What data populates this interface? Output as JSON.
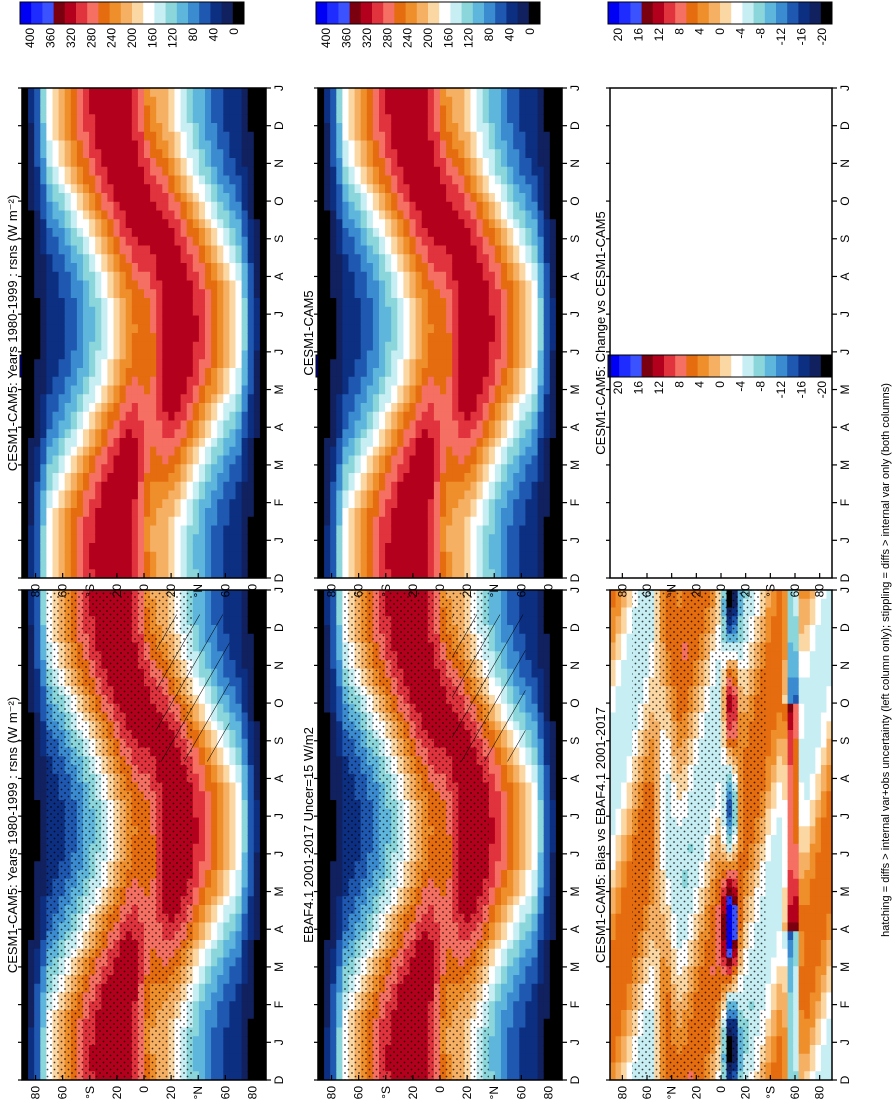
{
  "figure": {
    "orientation": "rotated-90-counterclockwise",
    "footnote": "hatching = diffs > internal var+obs uncertainty (left column only); stippling = diffs > internal var only (both columns)"
  },
  "chart_data": [
    {
      "id": "panel-model-left",
      "type": "heatmap",
      "title": "CESM1-CAM5: Years 1980-1999 : rsns (W m⁻²)",
      "xlabel": "",
      "ylabel": "",
      "x_ticks": [
        "D",
        "J",
        "F",
        "M",
        "A",
        "M",
        "J",
        "J",
        "A",
        "S",
        "O",
        "N",
        "D",
        "J"
      ],
      "y_ticks": [
        "80",
        "60",
        "°S",
        "20",
        "0",
        "20",
        "°N",
        "60",
        "80"
      ],
      "ylim": [
        -90,
        90
      ],
      "colorbar_labels": [
        "400",
        "360",
        "320",
        "280",
        "240",
        "200",
        "160",
        "120",
        "80",
        "40",
        "0"
      ],
      "field": "mean",
      "overlays": [
        "stippling",
        "hatching"
      ]
    },
    {
      "id": "panel-model-right",
      "type": "heatmap",
      "title": "CESM1-CAM5: Years 1980-1999 : rsns (W m⁻²)",
      "x_ticks": [
        "D",
        "J",
        "F",
        "M",
        "A",
        "M",
        "J",
        "J",
        "A",
        "S",
        "O",
        "N",
        "D",
        "J"
      ],
      "y_ticks": [
        "80",
        "60",
        "°S",
        "20",
        "0",
        "20",
        "°N",
        "60",
        "80"
      ],
      "ylim": [
        -90,
        90
      ],
      "colorbar_labels": [
        "400",
        "360",
        "320",
        "280",
        "240",
        "200",
        "160",
        "120",
        "80",
        "40",
        "0"
      ],
      "field": "mean",
      "overlays": []
    },
    {
      "id": "panel-obs-left",
      "type": "heatmap",
      "title": "EBAF4.1 2001-2017 Uncer=15 W/m2",
      "x_ticks": [
        "D",
        "J",
        "F",
        "M",
        "A",
        "M",
        "J",
        "J",
        "A",
        "S",
        "O",
        "N",
        "D",
        "J"
      ],
      "y_ticks": [
        "80",
        "60",
        "°S",
        "20",
        "0",
        "20",
        "°N",
        "60",
        "80"
      ],
      "ylim": [
        -90,
        90
      ],
      "colorbar_labels": [
        "400",
        "360",
        "320",
        "280",
        "240",
        "200",
        "160",
        "120",
        "80",
        "40",
        "0"
      ],
      "field": "mean",
      "overlays": [
        "stippling",
        "hatching"
      ]
    },
    {
      "id": "panel-model-right-2",
      "type": "heatmap",
      "title": "CESM1-CAM5",
      "x_ticks": [
        "D",
        "J",
        "F",
        "M",
        "A",
        "M",
        "J",
        "J",
        "A",
        "S",
        "O",
        "N",
        "D",
        "J"
      ],
      "y_ticks": [
        "80",
        "60",
        "°S",
        "20",
        "0",
        "20",
        "°N",
        "60",
        "80"
      ],
      "ylim": [
        -90,
        90
      ],
      "colorbar_labels": [
        "400",
        "360",
        "320",
        "280",
        "240",
        "200",
        "160",
        "120",
        "80",
        "40",
        "0"
      ],
      "field": "mean",
      "overlays": []
    },
    {
      "id": "panel-bias-left",
      "type": "heatmap",
      "title": "CESM1-CAM5: Bias vs EBAF4.1 2001-2017",
      "x_ticks": [
        "D",
        "J",
        "F",
        "M",
        "A",
        "M",
        "J",
        "J",
        "A",
        "S",
        "O",
        "N",
        "D",
        "J"
      ],
      "y_ticks": [
        "80",
        "60",
        "°N",
        "20",
        "0",
        "20",
        "°S",
        "60",
        "80"
      ],
      "ylim": [
        90,
        -90
      ],
      "colorbar_labels": [
        "20",
        "16",
        "12",
        "8",
        "4",
        "0",
        "-4",
        "-8",
        "-12",
        "-16",
        "-20"
      ],
      "field": "bias",
      "overlays": [
        "stippling"
      ]
    },
    {
      "id": "panel-change-right",
      "type": "heatmap",
      "title": "CESM1-CAM5: Change vs CESM1-CAM5",
      "x_ticks": [
        "D",
        "J",
        "F",
        "M",
        "A",
        "M",
        "J",
        "J",
        "A",
        "S",
        "O",
        "N",
        "D",
        "J"
      ],
      "y_ticks": [
        "80",
        "60",
        "°N",
        "20",
        "0",
        "20",
        "°S",
        "60",
        "80"
      ],
      "ylim": [
        90,
        -90
      ],
      "colorbar_labels": [
        "20",
        "16",
        "12",
        "8",
        "4",
        "0",
        "-4",
        "-8",
        "-12",
        "-16",
        "-20"
      ],
      "field": "empty",
      "overlays": []
    }
  ],
  "colors": {
    "mean_scale": [
      "#0000f5",
      "#1f2cff",
      "#3a52ff",
      "#7a0010",
      "#b3001c",
      "#e0333d",
      "#f56f62",
      "#e56c0f",
      "#ef8f2b",
      "#f6b064",
      "#fbd7a4",
      "#ffffff",
      "#c6eef3",
      "#8ad6da",
      "#5fb6dd",
      "#3b8bd0",
      "#1f58b0",
      "#0d2f82",
      "#11215f",
      "#000000"
    ],
    "bias_scale": [
      "#0000f5",
      "#1f2cff",
      "#3a52ff",
      "#7a0010",
      "#b3001c",
      "#e0333d",
      "#f56f62",
      "#e56c0f",
      "#ef8f2b",
      "#f6b064",
      "#fbd7a4",
      "#ffffff",
      "#c6eef3",
      "#8ad6da",
      "#5fb6dd",
      "#3b8bd0",
      "#1f58b0",
      "#0d2f82",
      "#11215f",
      "#000000"
    ]
  }
}
